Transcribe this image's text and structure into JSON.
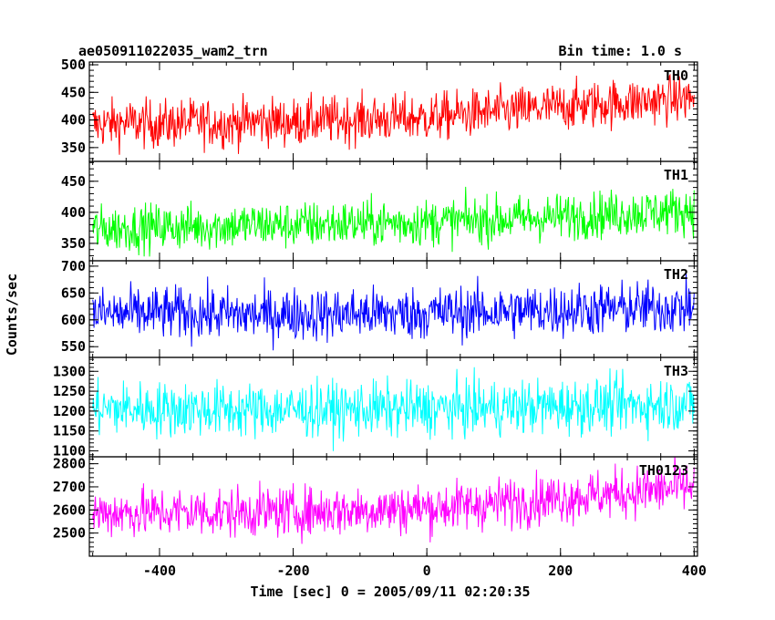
{
  "figure": {
    "title_left": "ae050911022035_wam2_trn",
    "title_right": "Bin time: 1.0 s",
    "xlabel": "Time [sec] 0 = 2005/09/11 02:20:35",
    "ylabel": "Counts/sec"
  },
  "chart_data": [
    {
      "type": "line",
      "name": "TH0",
      "color": "#ff0000",
      "xlim": [
        -505,
        405
      ],
      "ylim": [
        325,
        505
      ],
      "yticks": [
        350,
        400,
        450,
        500
      ],
      "x": [
        -500,
        -450,
        -400,
        -350,
        -300,
        -250,
        -200,
        -150,
        -100,
        -50,
        0,
        50,
        100,
        150,
        200,
        250,
        300,
        350,
        400
      ],
      "y": [
        391,
        395,
        392,
        396,
        393,
        398,
        396,
        399,
        401,
        402,
        404,
        410,
        414,
        418,
        424,
        428,
        432,
        436,
        440
      ],
      "y_noise": 22
    },
    {
      "type": "line",
      "name": "TH1",
      "color": "#00ff00",
      "xlim": [
        -505,
        405
      ],
      "ylim": [
        322,
        482
      ],
      "yticks": [
        350,
        400,
        450
      ],
      "x": [
        -500,
        -450,
        -400,
        -350,
        -300,
        -250,
        -200,
        -150,
        -100,
        -50,
        0,
        50,
        100,
        150,
        200,
        250,
        300,
        350,
        400
      ],
      "y": [
        372,
        375,
        376,
        377,
        378,
        380,
        379,
        381,
        382,
        383,
        384,
        386,
        388,
        390,
        393,
        396,
        398,
        401,
        404
      ],
      "y_noise": 19
    },
    {
      "type": "line",
      "name": "TH2",
      "color": "#0000ff",
      "xlim": [
        -505,
        405
      ],
      "ylim": [
        530,
        710
      ],
      "yticks": [
        550,
        600,
        650,
        700
      ],
      "x": [
        -500,
        -450,
        -400,
        -350,
        -300,
        -250,
        -200,
        -150,
        -100,
        -50,
        0,
        50,
        100,
        150,
        200,
        250,
        300,
        350,
        400
      ],
      "y": [
        612,
        611,
        613,
        612,
        610,
        609,
        611,
        610,
        612,
        611,
        613,
        614,
        615,
        617,
        618,
        620,
        621,
        622,
        624
      ],
      "y_noise": 25
    },
    {
      "type": "line",
      "name": "TH3",
      "color": "#00ffff",
      "xlim": [
        -505,
        405
      ],
      "ylim": [
        1085,
        1335
      ],
      "yticks": [
        1100,
        1150,
        1200,
        1250,
        1300
      ],
      "x": [
        -500,
        -450,
        -400,
        -350,
        -300,
        -250,
        -200,
        -150,
        -100,
        -50,
        0,
        50,
        100,
        150,
        200,
        250,
        300,
        350,
        400
      ],
      "y": [
        1205,
        1206,
        1204,
        1205,
        1203,
        1202,
        1204,
        1203,
        1205,
        1204,
        1206,
        1207,
        1208,
        1210,
        1212,
        1214,
        1215,
        1217,
        1219
      ],
      "y_noise": 35
    },
    {
      "type": "line",
      "name": "TH0123",
      "color": "#ff00ff",
      "xlim": [
        -505,
        405
      ],
      "ylim": [
        2400,
        2830
      ],
      "yticks": [
        2500,
        2600,
        2700,
        2800
      ],
      "x": [
        -500,
        -450,
        -400,
        -350,
        -300,
        -250,
        -200,
        -150,
        -100,
        -50,
        0,
        50,
        100,
        150,
        200,
        250,
        300,
        350,
        400
      ],
      "y": [
        2585,
        2590,
        2588,
        2592,
        2589,
        2593,
        2591,
        2596,
        2600,
        2604,
        2608,
        2618,
        2628,
        2640,
        2652,
        2664,
        2676,
        2688,
        2700
      ],
      "y_noise": 55
    }
  ],
  "xaxis": {
    "ticks": [
      -400,
      -200,
      0,
      200,
      400
    ]
  }
}
